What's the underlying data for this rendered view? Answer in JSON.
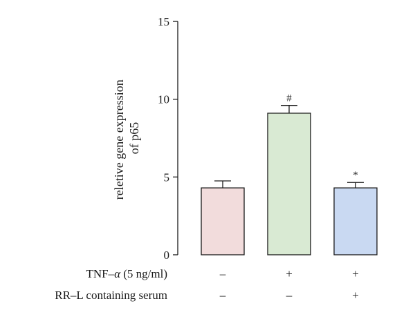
{
  "chart_data": {
    "type": "bar",
    "ylabel_line1": "reletive gene expression",
    "ylabel_line2": "of p65",
    "ylim": [
      0,
      15
    ],
    "yticks": [
      "0",
      "5",
      "10",
      "15"
    ],
    "grid": false,
    "bars": [
      {
        "value": 4.3,
        "error": 0.45,
        "annotation": "",
        "color": "#f2dcdc"
      },
      {
        "value": 9.1,
        "error": 0.5,
        "annotation": "#",
        "color": "#d9ead3"
      },
      {
        "value": 4.3,
        "error": 0.35,
        "annotation": "*",
        "color": "#c9d9f2"
      }
    ],
    "conditions": [
      {
        "label_prefix": "TNF–",
        "label_symbol": "α",
        "label_suffix": " (5 ng/ml)",
        "signs": [
          "–",
          "+",
          "+"
        ]
      },
      {
        "label": "RR–L containing serum",
        "signs": [
          "–",
          "–",
          "+"
        ]
      }
    ]
  }
}
